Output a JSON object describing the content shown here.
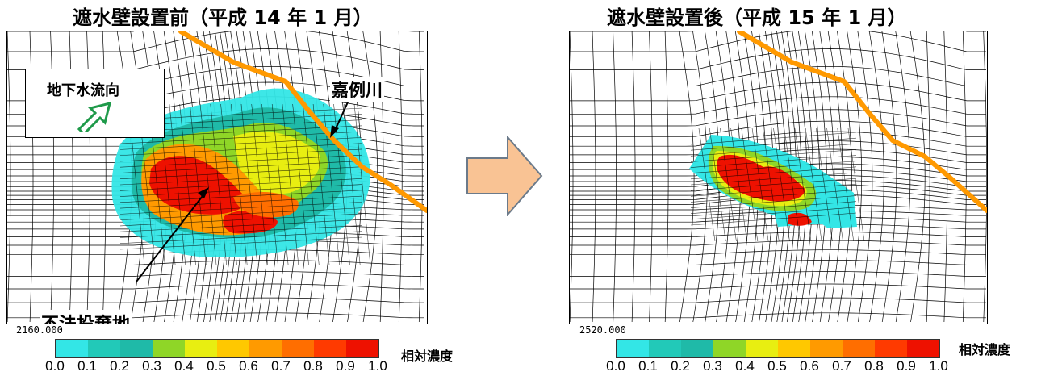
{
  "titles": {
    "left": "遮水壁設置前（平成 14 年 1 月）",
    "right": "遮水壁設置後（平成 15 年 1 月）"
  },
  "inset": {
    "label": "地下水流向",
    "arrow_icon": "flow-direction-arrow-icon"
  },
  "annotations": {
    "river": "嘉例川",
    "site": "不法投棄地"
  },
  "timesteps": {
    "left": "2160.000",
    "right": "2520.000"
  },
  "legend": {
    "title": "相対濃度",
    "ticks": [
      "0.0",
      "0.1",
      "0.2",
      "0.3",
      "0.4",
      "0.5",
      "0.6",
      "0.7",
      "0.8",
      "0.9",
      "1.0"
    ],
    "colors": [
      "#33e6e6",
      "#22c9b8",
      "#1fbaa8",
      "#8fd627",
      "#e8ee11",
      "#ffc800",
      "#ff9a00",
      "#ff6e00",
      "#ff3a00",
      "#ee1100"
    ]
  },
  "colors": {
    "river": "#ff9900",
    "arrow_fill": "#f9c394",
    "arrow_stroke": "#6b7a8a",
    "grid": "#000000"
  }
}
